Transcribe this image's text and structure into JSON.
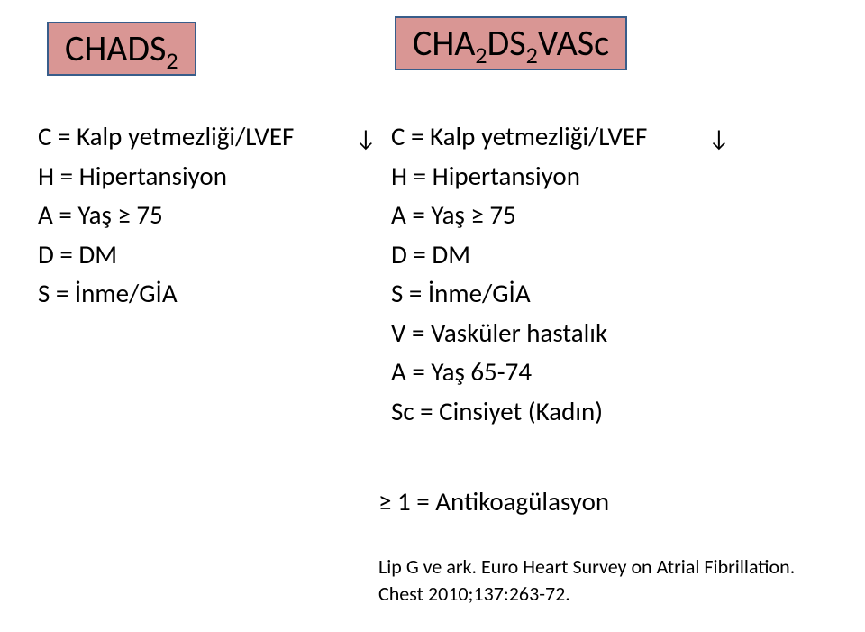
{
  "colors": {
    "box_fill": "#d99694",
    "box_border": "#385d8a",
    "text": "#000000",
    "background": "#ffffff"
  },
  "titles": {
    "left_pre": "CHADS",
    "left_sub": "2",
    "right_pre": "CHA",
    "right_sub1": "2",
    "right_mid": "DS",
    "right_sub2": "2",
    "right_post": "VASc"
  },
  "left_col": {
    "c": "C = Kalp yetmezliği/LVEF",
    "h": "H = Hipertansiyon",
    "a": "A = Yaş ≥ 75",
    "d": "D = DM",
    "s": "S = İnme/GİA"
  },
  "right_col": {
    "c": "C = Kalp yetmezliği/LVEF",
    "h": "H = Hipertansiyon",
    "a": "A = Yaş ≥ 75",
    "d": "D = DM",
    "s": "S = İnme/GİA",
    "v": "V = Vasküler hastalık",
    "a2": "A = Yaş 65-74",
    "sc": "Sc = Cinsiyet (Kadın)"
  },
  "arrow_glyph": "↓",
  "result": "≥ 1 = Antikoagülasyon",
  "citation": "Lip G ve ark. Euro Heart Survey on Atrial Fibrillation. Chest 2010;137:263-72."
}
